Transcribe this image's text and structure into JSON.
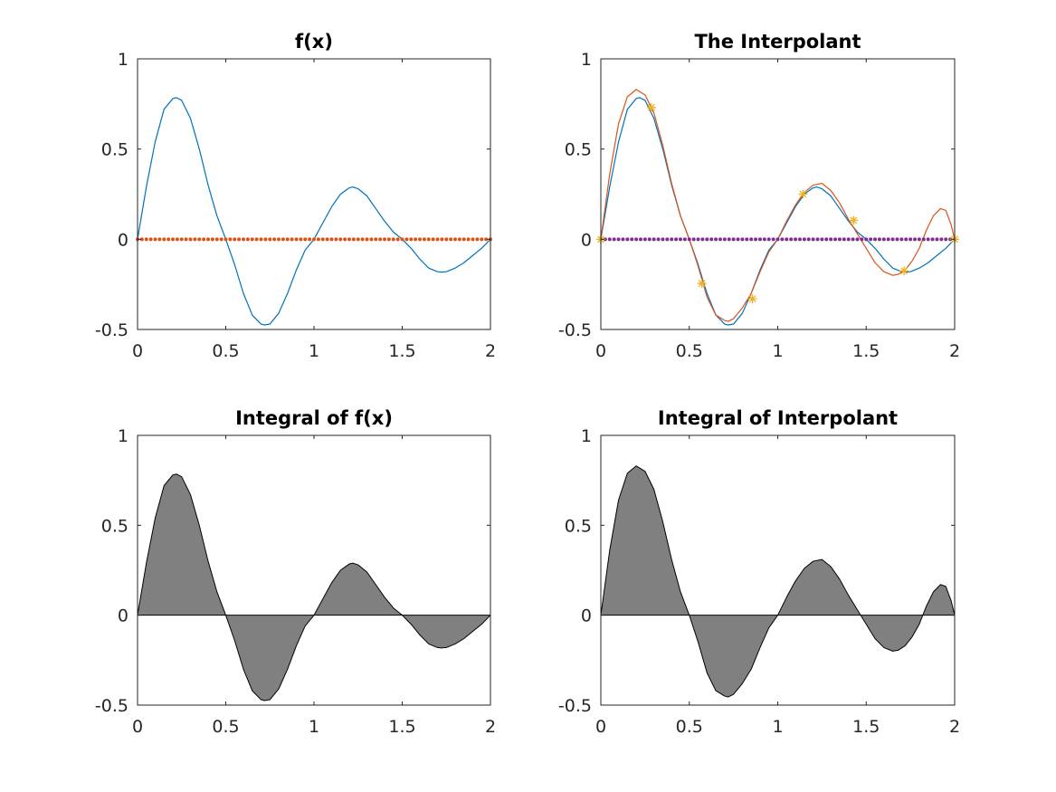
{
  "colors": {
    "blue": "#0072BD",
    "orange": "#D95319",
    "yellow": "#EDB120",
    "purple": "#7E2F8E",
    "fill_gray": "#808080",
    "axis": "#262626"
  },
  "chart_data": [
    {
      "type": "line",
      "title": "f(x)",
      "xlabel": "",
      "ylabel": "",
      "xlim": [
        0,
        2
      ],
      "ylim": [
        -0.5,
        1
      ],
      "xticks": [
        "0",
        "0.5",
        "1",
        "1.5",
        "2"
      ],
      "yticks": [
        "-0.5",
        "0",
        "0.5",
        "1"
      ],
      "grid": false,
      "series": [
        {
          "kind": "line",
          "color": "blue",
          "x": [
            0,
            0.05,
            0.1,
            0.15,
            0.2,
            0.22,
            0.25,
            0.3,
            0.35,
            0.4,
            0.45,
            0.5,
            0.55,
            0.6,
            0.65,
            0.7,
            0.72,
            0.75,
            0.8,
            0.85,
            0.9,
            0.95,
            1.0,
            1.05,
            1.1,
            1.15,
            1.2,
            1.22,
            1.25,
            1.3,
            1.35,
            1.4,
            1.45,
            1.5,
            1.55,
            1.6,
            1.65,
            1.7,
            1.72,
            1.75,
            1.8,
            1.85,
            1.9,
            1.95,
            2.0
          ],
          "y": [
            0,
            0.29,
            0.54,
            0.72,
            0.78,
            0.785,
            0.77,
            0.67,
            0.5,
            0.3,
            0.13,
            0,
            -0.14,
            -0.3,
            -0.42,
            -0.47,
            -0.475,
            -0.47,
            -0.41,
            -0.3,
            -0.17,
            -0.06,
            0,
            0.09,
            0.18,
            0.25,
            0.285,
            0.29,
            0.28,
            0.24,
            0.17,
            0.1,
            0.04,
            0,
            -0.05,
            -0.11,
            -0.16,
            -0.18,
            -0.182,
            -0.18,
            -0.16,
            -0.13,
            -0.09,
            -0.05,
            0
          ]
        },
        {
          "kind": "dots",
          "color": "orange",
          "x_start": 0,
          "x_end": 2,
          "count": 81,
          "y_value": 0
        }
      ]
    },
    {
      "type": "line",
      "title": "The Interpolant",
      "xlabel": "",
      "ylabel": "",
      "xlim": [
        0,
        2
      ],
      "ylim": [
        -0.5,
        1
      ],
      "xticks": [
        "0",
        "0.5",
        "1",
        "1.5",
        "2"
      ],
      "yticks": [
        "-0.5",
        "0",
        "0.5",
        "1"
      ],
      "grid": false,
      "series": [
        {
          "kind": "line",
          "color": "blue",
          "x": [
            0,
            0.05,
            0.1,
            0.15,
            0.2,
            0.22,
            0.25,
            0.3,
            0.35,
            0.4,
            0.45,
            0.5,
            0.55,
            0.6,
            0.65,
            0.7,
            0.72,
            0.75,
            0.8,
            0.85,
            0.9,
            0.95,
            1.0,
            1.05,
            1.1,
            1.15,
            1.2,
            1.22,
            1.25,
            1.3,
            1.35,
            1.4,
            1.45,
            1.5,
            1.55,
            1.6,
            1.65,
            1.7,
            1.72,
            1.75,
            1.8,
            1.85,
            1.9,
            1.95,
            2.0
          ],
          "y": [
            0,
            0.29,
            0.54,
            0.72,
            0.78,
            0.785,
            0.77,
            0.67,
            0.5,
            0.3,
            0.13,
            0,
            -0.14,
            -0.3,
            -0.42,
            -0.47,
            -0.475,
            -0.47,
            -0.41,
            -0.3,
            -0.17,
            -0.06,
            0,
            0.09,
            0.18,
            0.25,
            0.285,
            0.29,
            0.28,
            0.24,
            0.17,
            0.1,
            0.04,
            0,
            -0.05,
            -0.11,
            -0.16,
            -0.18,
            -0.182,
            -0.18,
            -0.16,
            -0.13,
            -0.09,
            -0.05,
            0
          ]
        },
        {
          "kind": "line",
          "color": "orange",
          "x": [
            0,
            0.05,
            0.1,
            0.15,
            0.2,
            0.25,
            0.3,
            0.35,
            0.4,
            0.45,
            0.5,
            0.55,
            0.6,
            0.65,
            0.7,
            0.72,
            0.75,
            0.8,
            0.85,
            0.9,
            0.95,
            1.0,
            1.05,
            1.1,
            1.15,
            1.2,
            1.25,
            1.3,
            1.35,
            1.4,
            1.45,
            1.5,
            1.55,
            1.6,
            1.65,
            1.68,
            1.72,
            1.76,
            1.8,
            1.84,
            1.88,
            1.92,
            1.95,
            1.98,
            2.0
          ],
          "y": [
            0,
            0.36,
            0.64,
            0.79,
            0.83,
            0.8,
            0.7,
            0.52,
            0.31,
            0.13,
            0,
            -0.15,
            -0.32,
            -0.42,
            -0.45,
            -0.455,
            -0.44,
            -0.38,
            -0.3,
            -0.18,
            -0.07,
            0,
            0.1,
            0.19,
            0.26,
            0.3,
            0.31,
            0.27,
            0.2,
            0.11,
            0.03,
            -0.05,
            -0.13,
            -0.18,
            -0.2,
            -0.195,
            -0.17,
            -0.12,
            -0.05,
            0.05,
            0.13,
            0.17,
            0.16,
            0.08,
            0
          ]
        },
        {
          "kind": "dots",
          "color": "purple",
          "x_start": 0,
          "x_end": 2,
          "count": 81,
          "y_value": 0
        },
        {
          "kind": "stars",
          "color": "yellow",
          "x": [
            0,
            0.2857,
            0.5714,
            0.8571,
            1.1429,
            1.4286,
            1.7143,
            2.0
          ],
          "y": [
            0,
            0.73,
            -0.245,
            -0.33,
            0.25,
            0.105,
            -0.175,
            0
          ]
        }
      ]
    },
    {
      "type": "area",
      "title": "Integral of f(x)",
      "xlabel": "",
      "ylabel": "",
      "xlim": [
        0,
        2
      ],
      "ylim": [
        -0.5,
        1
      ],
      "xticks": [
        "0",
        "0.5",
        "1",
        "1.5",
        "2"
      ],
      "yticks": [
        "-0.5",
        "0",
        "0.5",
        "1"
      ],
      "grid": false,
      "series": [
        {
          "kind": "fill",
          "color": "fill_gray",
          "x": [
            0,
            0.05,
            0.1,
            0.15,
            0.2,
            0.22,
            0.25,
            0.3,
            0.35,
            0.4,
            0.45,
            0.5,
            0.55,
            0.6,
            0.65,
            0.7,
            0.72,
            0.75,
            0.8,
            0.85,
            0.9,
            0.95,
            1.0,
            1.05,
            1.1,
            1.15,
            1.2,
            1.22,
            1.25,
            1.3,
            1.35,
            1.4,
            1.45,
            1.5,
            1.55,
            1.6,
            1.65,
            1.7,
            1.72,
            1.75,
            1.8,
            1.85,
            1.9,
            1.95,
            2.0
          ],
          "y": [
            0,
            0.29,
            0.54,
            0.72,
            0.78,
            0.785,
            0.77,
            0.67,
            0.5,
            0.3,
            0.13,
            0,
            -0.14,
            -0.3,
            -0.42,
            -0.47,
            -0.475,
            -0.47,
            -0.41,
            -0.3,
            -0.17,
            -0.06,
            0,
            0.09,
            0.18,
            0.25,
            0.285,
            0.29,
            0.28,
            0.24,
            0.17,
            0.1,
            0.04,
            0,
            -0.05,
            -0.11,
            -0.16,
            -0.18,
            -0.182,
            -0.18,
            -0.16,
            -0.13,
            -0.09,
            -0.05,
            0
          ]
        }
      ]
    },
    {
      "type": "area",
      "title": "Integral of Interpolant",
      "xlabel": "",
      "ylabel": "",
      "xlim": [
        0,
        2
      ],
      "ylim": [
        -0.5,
        1
      ],
      "xticks": [
        "0",
        "0.5",
        "1",
        "1.5",
        "2"
      ],
      "yticks": [
        "-0.5",
        "0",
        "0.5",
        "1"
      ],
      "grid": false,
      "series": [
        {
          "kind": "fill",
          "color": "fill_gray",
          "x": [
            0,
            0.05,
            0.1,
            0.15,
            0.2,
            0.25,
            0.3,
            0.35,
            0.4,
            0.45,
            0.5,
            0.55,
            0.6,
            0.65,
            0.7,
            0.72,
            0.75,
            0.8,
            0.85,
            0.9,
            0.95,
            1.0,
            1.05,
            1.1,
            1.15,
            1.2,
            1.25,
            1.3,
            1.35,
            1.4,
            1.45,
            1.5,
            1.55,
            1.6,
            1.65,
            1.68,
            1.72,
            1.76,
            1.8,
            1.84,
            1.88,
            1.92,
            1.95,
            1.98,
            2.0
          ],
          "y": [
            0,
            0.36,
            0.64,
            0.79,
            0.83,
            0.8,
            0.7,
            0.52,
            0.31,
            0.13,
            0,
            -0.15,
            -0.32,
            -0.42,
            -0.45,
            -0.455,
            -0.44,
            -0.38,
            -0.3,
            -0.18,
            -0.07,
            0,
            0.1,
            0.19,
            0.26,
            0.3,
            0.31,
            0.27,
            0.2,
            0.11,
            0.03,
            -0.05,
            -0.13,
            -0.18,
            -0.2,
            -0.195,
            -0.17,
            -0.12,
            -0.05,
            0.05,
            0.13,
            0.17,
            0.16,
            0.08,
            0
          ]
        }
      ]
    }
  ]
}
